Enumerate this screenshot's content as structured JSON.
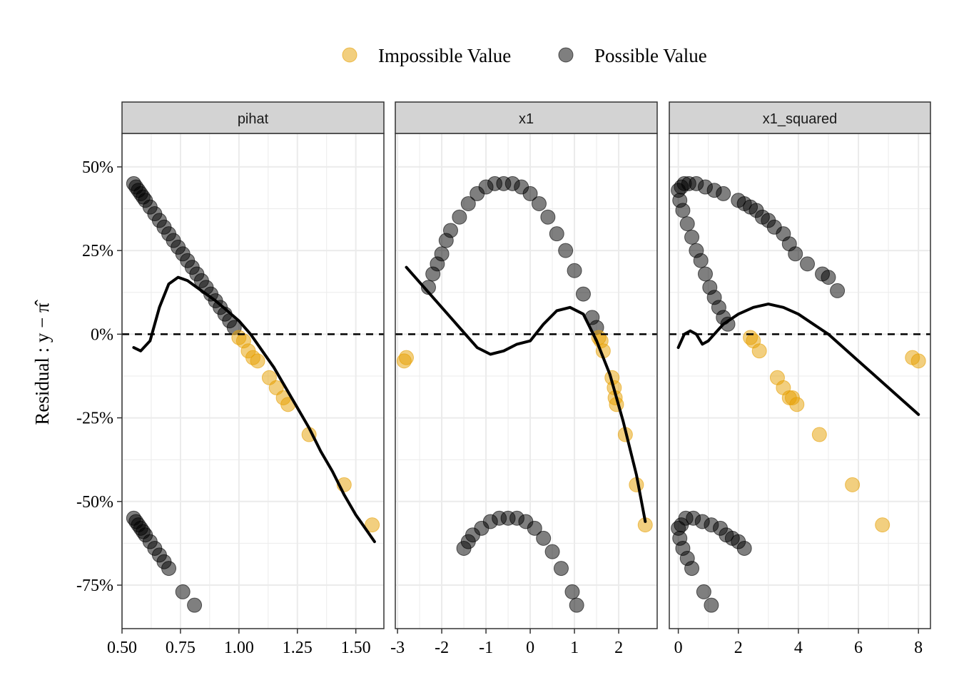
{
  "chart_data": {
    "type": "scatter",
    "title": "",
    "ylabel": "Residual : y − π̂",
    "ylim": [
      -0.88,
      0.6
    ],
    "y_ticks": [
      0.5,
      0.25,
      0,
      -0.25,
      -0.5,
      -0.75
    ],
    "y_tick_labels": [
      "50%",
      "25%",
      "0%",
      "-25%",
      "-50%",
      "-75%"
    ],
    "grid": true,
    "reference_line": {
      "y": 0,
      "style": "dashed"
    },
    "legend": {
      "position": "top",
      "entries": [
        {
          "label": "Impossible Value",
          "color": "#E69F00"
        },
        {
          "label": "Possible Value",
          "color": "#000000"
        }
      ]
    },
    "colors": {
      "impossible": "#E69F00",
      "possible": "#000000",
      "strip": "#D3D3D3",
      "grid": "#EBEBEB"
    },
    "panels": [
      {
        "name": "pihat",
        "xlim": [
          0.5,
          1.62
        ],
        "x_ticks": [
          0.5,
          0.75,
          1.0,
          1.25,
          1.5
        ],
        "x_tick_labels": [
          "0.50",
          "0.75",
          "1.00",
          "1.25",
          "1.50"
        ],
        "possible": [
          [
            0.55,
            0.45
          ],
          [
            0.56,
            0.44
          ],
          [
            0.57,
            0.43
          ],
          [
            0.58,
            0.42
          ],
          [
            0.59,
            0.41
          ],
          [
            0.6,
            0.4
          ],
          [
            0.62,
            0.38
          ],
          [
            0.64,
            0.36
          ],
          [
            0.66,
            0.34
          ],
          [
            0.68,
            0.32
          ],
          [
            0.7,
            0.3
          ],
          [
            0.72,
            0.28
          ],
          [
            0.74,
            0.26
          ],
          [
            0.76,
            0.24
          ],
          [
            0.78,
            0.22
          ],
          [
            0.8,
            0.2
          ],
          [
            0.82,
            0.18
          ],
          [
            0.84,
            0.16
          ],
          [
            0.86,
            0.14
          ],
          [
            0.88,
            0.12
          ],
          [
            0.9,
            0.1
          ],
          [
            0.92,
            0.08
          ],
          [
            0.94,
            0.06
          ],
          [
            0.96,
            0.04
          ],
          [
            0.98,
            0.02
          ],
          [
            0.55,
            -0.55
          ],
          [
            0.56,
            -0.56
          ],
          [
            0.57,
            -0.57
          ],
          [
            0.58,
            -0.58
          ],
          [
            0.59,
            -0.59
          ],
          [
            0.6,
            -0.6
          ],
          [
            0.62,
            -0.62
          ],
          [
            0.64,
            -0.64
          ],
          [
            0.66,
            -0.66
          ],
          [
            0.68,
            -0.68
          ],
          [
            0.7,
            -0.7
          ],
          [
            0.76,
            -0.77
          ],
          [
            0.81,
            -0.81
          ]
        ],
        "impossible": [
          [
            1.0,
            -0.01
          ],
          [
            1.02,
            -0.02
          ],
          [
            1.04,
            -0.05
          ],
          [
            1.06,
            -0.07
          ],
          [
            1.08,
            -0.08
          ],
          [
            1.13,
            -0.13
          ],
          [
            1.16,
            -0.16
          ],
          [
            1.19,
            -0.19
          ],
          [
            1.21,
            -0.21
          ],
          [
            1.3,
            -0.3
          ],
          [
            1.45,
            -0.45
          ],
          [
            1.57,
            -0.57
          ]
        ],
        "smooth": [
          [
            0.55,
            -0.04
          ],
          [
            0.58,
            -0.05
          ],
          [
            0.62,
            -0.02
          ],
          [
            0.66,
            0.08
          ],
          [
            0.7,
            0.15
          ],
          [
            0.74,
            0.17
          ],
          [
            0.78,
            0.16
          ],
          [
            0.82,
            0.14
          ],
          [
            0.86,
            0.12
          ],
          [
            0.9,
            0.1
          ],
          [
            0.95,
            0.07
          ],
          [
            1.0,
            0.04
          ],
          [
            1.05,
            0.0
          ],
          [
            1.1,
            -0.05
          ],
          [
            1.15,
            -0.1
          ],
          [
            1.2,
            -0.16
          ],
          [
            1.25,
            -0.22
          ],
          [
            1.3,
            -0.28
          ],
          [
            1.35,
            -0.35
          ],
          [
            1.4,
            -0.41
          ],
          [
            1.45,
            -0.48
          ],
          [
            1.5,
            -0.54
          ],
          [
            1.55,
            -0.59
          ],
          [
            1.58,
            -0.62
          ]
        ]
      },
      {
        "name": "x1",
        "xlim": [
          -3.05,
          2.87
        ],
        "x_ticks": [
          -3,
          -2,
          -1,
          0,
          1,
          2
        ],
        "x_tick_labels": [
          "-3",
          "-2",
          "-1",
          "0",
          "1",
          "2"
        ],
        "possible": [
          [
            -2.3,
            0.14
          ],
          [
            -2.2,
            0.18
          ],
          [
            -2.1,
            0.21
          ],
          [
            -2.0,
            0.24
          ],
          [
            -1.9,
            0.28
          ],
          [
            -1.8,
            0.31
          ],
          [
            -1.6,
            0.35
          ],
          [
            -1.4,
            0.39
          ],
          [
            -1.2,
            0.42
          ],
          [
            -1.0,
            0.44
          ],
          [
            -0.8,
            0.45
          ],
          [
            -0.6,
            0.45
          ],
          [
            -0.4,
            0.45
          ],
          [
            -0.2,
            0.44
          ],
          [
            0.0,
            0.42
          ],
          [
            0.2,
            0.39
          ],
          [
            0.4,
            0.35
          ],
          [
            0.6,
            0.3
          ],
          [
            0.8,
            0.25
          ],
          [
            1.0,
            0.19
          ],
          [
            1.2,
            0.12
          ],
          [
            1.4,
            0.05
          ],
          [
            1.5,
            0.02
          ],
          [
            -1.5,
            -0.64
          ],
          [
            -1.4,
            -0.62
          ],
          [
            -1.3,
            -0.6
          ],
          [
            -1.1,
            -0.58
          ],
          [
            -0.9,
            -0.56
          ],
          [
            -0.7,
            -0.55
          ],
          [
            -0.5,
            -0.55
          ],
          [
            -0.3,
            -0.55
          ],
          [
            -0.1,
            -0.56
          ],
          [
            0.1,
            -0.58
          ],
          [
            0.3,
            -0.61
          ],
          [
            0.5,
            -0.65
          ],
          [
            0.7,
            -0.7
          ],
          [
            0.95,
            -0.77
          ],
          [
            1.05,
            -0.81
          ]
        ],
        "impossible": [
          [
            -2.85,
            -0.08
          ],
          [
            -2.8,
            -0.07
          ],
          [
            1.55,
            -0.01
          ],
          [
            1.6,
            -0.02
          ],
          [
            1.65,
            -0.05
          ],
          [
            1.85,
            -0.13
          ],
          [
            1.9,
            -0.16
          ],
          [
            1.92,
            -0.19
          ],
          [
            1.95,
            -0.21
          ],
          [
            2.15,
            -0.3
          ],
          [
            2.4,
            -0.45
          ],
          [
            2.6,
            -0.57
          ]
        ],
        "smooth": [
          [
            -2.8,
            0.2
          ],
          [
            -2.4,
            0.14
          ],
          [
            -2.0,
            0.08
          ],
          [
            -1.6,
            0.02
          ],
          [
            -1.2,
            -0.04
          ],
          [
            -0.9,
            -0.06
          ],
          [
            -0.6,
            -0.05
          ],
          [
            -0.3,
            -0.03
          ],
          [
            0.0,
            -0.02
          ],
          [
            0.3,
            0.03
          ],
          [
            0.6,
            0.07
          ],
          [
            0.9,
            0.08
          ],
          [
            1.2,
            0.06
          ],
          [
            1.5,
            -0.02
          ],
          [
            1.8,
            -0.12
          ],
          [
            2.1,
            -0.26
          ],
          [
            2.4,
            -0.42
          ],
          [
            2.6,
            -0.56
          ]
        ]
      },
      {
        "name": "x1_squared",
        "xlim": [
          -0.3,
          8.4
        ],
        "x_ticks": [
          0,
          2,
          4,
          6,
          8
        ],
        "x_tick_labels": [
          "0",
          "2",
          "4",
          "6",
          "8"
        ],
        "possible": [
          [
            0.0,
            0.43
          ],
          [
            0.1,
            0.44
          ],
          [
            0.2,
            0.45
          ],
          [
            0.35,
            0.45
          ],
          [
            0.6,
            0.45
          ],
          [
            0.9,
            0.44
          ],
          [
            1.2,
            0.43
          ],
          [
            1.5,
            0.42
          ],
          [
            0.05,
            0.4
          ],
          [
            0.15,
            0.37
          ],
          [
            0.3,
            0.33
          ],
          [
            0.45,
            0.29
          ],
          [
            0.6,
            0.25
          ],
          [
            0.75,
            0.22
          ],
          [
            0.9,
            0.18
          ],
          [
            1.05,
            0.14
          ],
          [
            1.2,
            0.11
          ],
          [
            1.35,
            0.08
          ],
          [
            1.5,
            0.05
          ],
          [
            1.65,
            0.03
          ],
          [
            2.0,
            0.4
          ],
          [
            2.2,
            0.39
          ],
          [
            2.4,
            0.38
          ],
          [
            2.6,
            0.37
          ],
          [
            2.8,
            0.35
          ],
          [
            3.0,
            0.34
          ],
          [
            3.2,
            0.32
          ],
          [
            3.5,
            0.3
          ],
          [
            3.7,
            0.27
          ],
          [
            3.9,
            0.24
          ],
          [
            4.3,
            0.21
          ],
          [
            4.8,
            0.18
          ],
          [
            5.0,
            0.17
          ],
          [
            5.3,
            0.13
          ],
          [
            0.0,
            -0.58
          ],
          [
            0.1,
            -0.57
          ],
          [
            0.25,
            -0.55
          ],
          [
            0.5,
            -0.55
          ],
          [
            0.8,
            -0.56
          ],
          [
            1.1,
            -0.57
          ],
          [
            1.4,
            -0.58
          ],
          [
            1.6,
            -0.6
          ],
          [
            1.8,
            -0.61
          ],
          [
            2.0,
            -0.62
          ],
          [
            2.2,
            -0.64
          ],
          [
            0.05,
            -0.61
          ],
          [
            0.15,
            -0.64
          ],
          [
            0.3,
            -0.67
          ],
          [
            0.45,
            -0.7
          ],
          [
            0.85,
            -0.77
          ],
          [
            1.1,
            -0.81
          ]
        ],
        "impossible": [
          [
            2.4,
            -0.01
          ],
          [
            2.5,
            -0.02
          ],
          [
            2.7,
            -0.05
          ],
          [
            3.3,
            -0.13
          ],
          [
            3.5,
            -0.16
          ],
          [
            3.7,
            -0.19
          ],
          [
            3.8,
            -0.19
          ],
          [
            3.95,
            -0.21
          ],
          [
            4.7,
            -0.3
          ],
          [
            5.8,
            -0.45
          ],
          [
            6.8,
            -0.57
          ],
          [
            7.8,
            -0.07
          ],
          [
            8.0,
            -0.08
          ]
        ],
        "smooth": [
          [
            0.0,
            -0.04
          ],
          [
            0.2,
            0.0
          ],
          [
            0.4,
            0.01
          ],
          [
            0.6,
            0.0
          ],
          [
            0.8,
            -0.03
          ],
          [
            1.0,
            -0.02
          ],
          [
            1.5,
            0.03
          ],
          [
            2.0,
            0.06
          ],
          [
            2.5,
            0.08
          ],
          [
            3.0,
            0.09
          ],
          [
            3.5,
            0.08
          ],
          [
            4.0,
            0.06
          ],
          [
            4.5,
            0.03
          ],
          [
            5.0,
            0.0
          ],
          [
            5.5,
            -0.04
          ],
          [
            6.0,
            -0.08
          ],
          [
            6.5,
            -0.12
          ],
          [
            7.0,
            -0.16
          ],
          [
            7.5,
            -0.2
          ],
          [
            8.0,
            -0.24
          ]
        ]
      }
    ]
  }
}
